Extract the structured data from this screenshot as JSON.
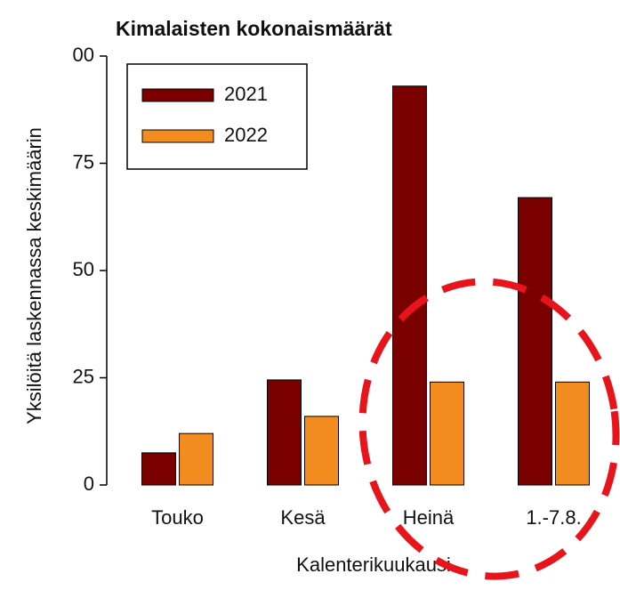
{
  "chart_data": {
    "type": "bar",
    "title": "Kimalaisten kokonaismäärät",
    "x_label": "Kalenterikuukausi",
    "y_label": "Yksilöitä laskennassa keskimäärin",
    "categories": [
      "Touko",
      "Kesä",
      "Heinä",
      "1.-7.8."
    ],
    "series": [
      {
        "name": "2021",
        "color": "#7a0000",
        "values": [
          7.5,
          24.5,
          93,
          67
        ]
      },
      {
        "name": "2022",
        "color": "#f28c1e",
        "values": [
          12,
          16,
          24,
          24
        ]
      }
    ],
    "ylim": [
      0,
      100
    ],
    "yticks": [
      0,
      25,
      50,
      75,
      {
        "value": 100,
        "label": "00"
      }
    ],
    "legend": "upper-left"
  }
}
